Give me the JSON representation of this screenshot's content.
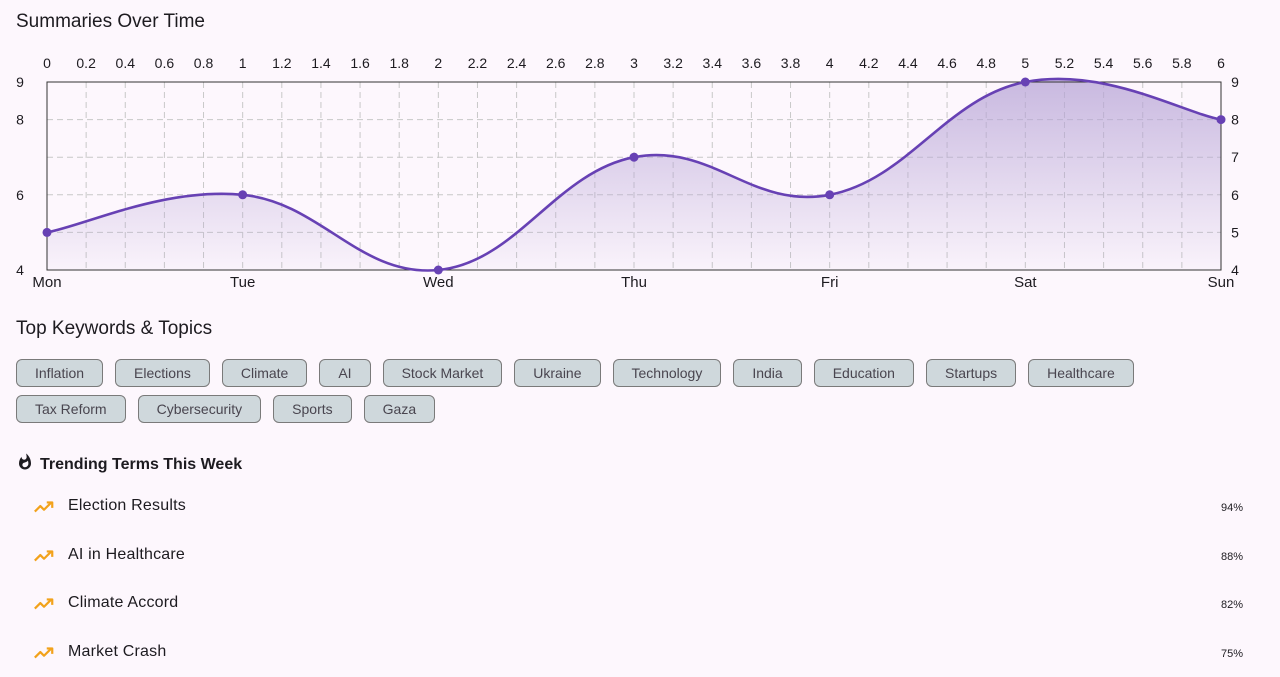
{
  "sections": {
    "chart_title": "Summaries Over Time",
    "keywords_title": "Top Keywords & Topics",
    "trending_title": "Trending Terms This Week"
  },
  "colors": {
    "line": "#6741b4",
    "fill_top": "#b7a4d6",
    "chip_bg": "#cfd8dc",
    "trend_icon": "#f2a21b",
    "fire_icon": "#1d1b20"
  },
  "chart_data": {
    "type": "line",
    "title": "Summaries Over Time",
    "x": [
      0,
      1,
      2,
      3,
      4,
      5,
      6
    ],
    "categories": [
      "Mon",
      "Tue",
      "Wed",
      "Thu",
      "Fri",
      "Sat",
      "Sun"
    ],
    "series": [
      {
        "values": [
          5,
          6,
          4,
          7,
          6,
          9,
          8
        ]
      }
    ],
    "xlim": [
      0,
      6
    ],
    "ylim": [
      4,
      9
    ],
    "x_top_ticks": [
      "0",
      "0.2",
      "0.4",
      "0.6",
      "0.8",
      "1",
      "1.2",
      "1.4",
      "1.6",
      "1.8",
      "2",
      "2.2",
      "2.4",
      "2.6",
      "2.8",
      "3",
      "3.2",
      "3.4",
      "3.6",
      "3.8",
      "4",
      "4.2",
      "4.4",
      "4.6",
      "4.8",
      "5",
      "5.2",
      "5.4",
      "5.6",
      "5.8",
      "6"
    ],
    "y_left_ticks": [
      "4",
      "6",
      "8",
      "9"
    ],
    "y_right_ticks": [
      "4",
      "5",
      "6",
      "7",
      "8",
      "9"
    ],
    "curve": "smooth",
    "area_fill": true,
    "grid": true
  },
  "keywords": [
    "Inflation",
    "Elections",
    "Climate",
    "AI",
    "Stock Market",
    "Ukraine",
    "Technology",
    "India",
    "Education",
    "Startups",
    "Healthcare",
    "Tax Reform",
    "Cybersecurity",
    "Sports",
    "Gaza"
  ],
  "trending": [
    {
      "label": "Election Results",
      "pct": "94%"
    },
    {
      "label": "AI in Healthcare",
      "pct": "88%"
    },
    {
      "label": "Climate Accord",
      "pct": "82%"
    },
    {
      "label": "Market Crash",
      "pct": "75%"
    }
  ]
}
